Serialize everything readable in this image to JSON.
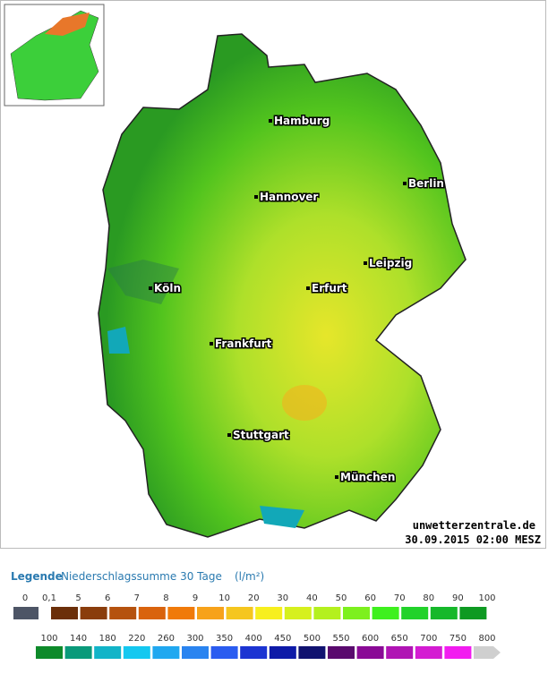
{
  "map": {
    "cities": [
      "Hamburg",
      "Berlin",
      "Hannover",
      "Leipzig",
      "Köln",
      "Erfurt",
      "Frankfurt",
      "Stuttgart",
      "München"
    ],
    "source": "unwetterzentrale.de",
    "timestamp": "30.09.2015 02:00 MESZ"
  },
  "legend": {
    "title": "Legende",
    "subtitle": "Niederschlagssumme 30 Tage",
    "unit": "(l/m²)",
    "row1": {
      "labels": [
        "0",
        "0,1",
        "5",
        "6",
        "7",
        "8",
        "9",
        "10",
        "20",
        "30",
        "40",
        "50",
        "60",
        "70",
        "80",
        "90",
        "100"
      ],
      "colors": [
        "#4d5566",
        "#6b2f0a",
        "#8a3d0c",
        "#b5520e",
        "#d9630d",
        "#f07a0a",
        "#f7a21a",
        "#f5c61e",
        "#f7ef1e",
        "#d6f01e",
        "#b4f01e",
        "#7df01e",
        "#3ef01e",
        "#22d22a",
        "#16b82a",
        "#0e9a22"
      ]
    },
    "row2": {
      "labels": [
        "100",
        "140",
        "180",
        "220",
        "260",
        "300",
        "350",
        "400",
        "450",
        "500",
        "550",
        "600",
        "650",
        "700",
        "750",
        "800"
      ],
      "colors": [
        "#0e8a2a",
        "#0a9a7a",
        "#12b4c8",
        "#14c8f0",
        "#20a8f0",
        "#2a84f0",
        "#2a5cf0",
        "#1c34d2",
        "#0e1aa8",
        "#101270",
        "#5a0a6e",
        "#8a0a96",
        "#b014b4",
        "#d41cd2",
        "#f21cf0",
        "#cfcfcf"
      ]
    }
  }
}
